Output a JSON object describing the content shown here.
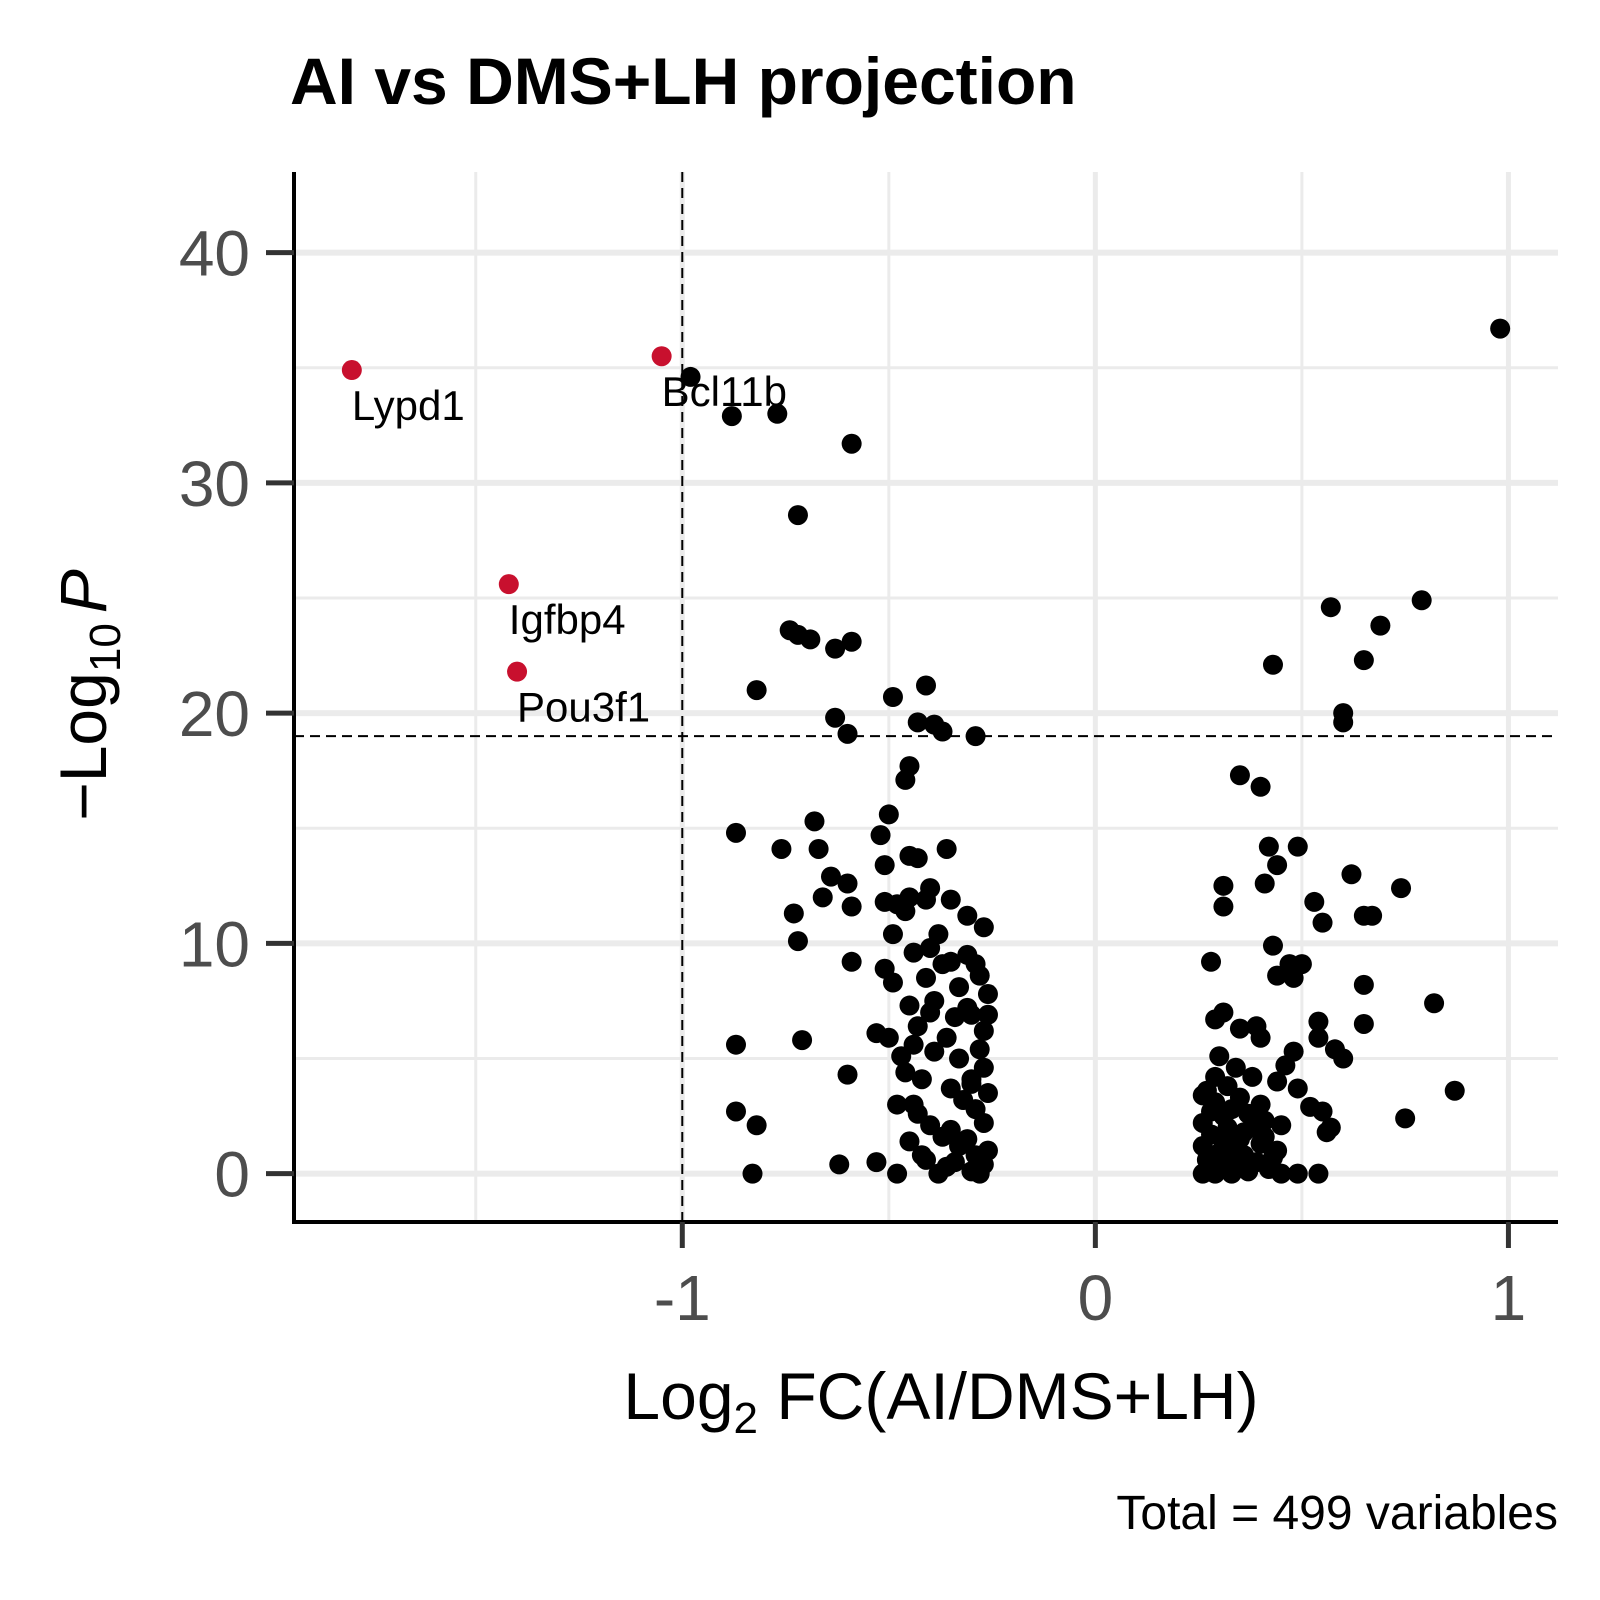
{
  "chart_data": {
    "type": "scatter",
    "title": "AI vs DMS+LH projection",
    "xlabel": {
      "prefix": "Log",
      "sub": "2",
      "rest": " FC(AI/DMS+LH)"
    },
    "ylabel": {
      "minus": "−",
      "prefix": "Log",
      "sub": "10",
      "italic": "P"
    },
    "caption": "Total = 499 variables",
    "xlim": [
      -1.94,
      1.12
    ],
    "ylim": [
      -2.1,
      43.5
    ],
    "x_ticks": [
      {
        "value": -1,
        "label": "-1"
      },
      {
        "value": 0,
        "label": "0"
      },
      {
        "value": 1,
        "label": "1"
      }
    ],
    "y_ticks": [
      {
        "value": 0,
        "label": "0"
      },
      {
        "value": 10,
        "label": "10"
      },
      {
        "value": 20,
        "label": "20"
      },
      {
        "value": 30,
        "label": "30"
      },
      {
        "value": 40,
        "label": "40"
      }
    ],
    "x_minor_grid": [
      -1.5,
      -0.5,
      0.5
    ],
    "y_minor_grid": [
      5,
      15,
      25,
      35
    ],
    "grid": true,
    "thresholds": {
      "x": -1.0,
      "y": 19.0
    },
    "colors": {
      "highlight": "#c8102e",
      "point": "#000000",
      "grid": "#ebebeb"
    },
    "labeled_points": [
      {
        "x": -1.8,
        "y": 34.9,
        "label": "Lypd1"
      },
      {
        "x": -1.05,
        "y": 35.5,
        "label": "Bcl11b"
      },
      {
        "x": -1.42,
        "y": 25.6,
        "label": "Igfbp4"
      },
      {
        "x": -1.4,
        "y": 21.8,
        "label": "Pou3f1"
      }
    ],
    "points": [
      [
        0.98,
        36.7
      ],
      [
        -0.98,
        34.6
      ],
      [
        -0.88,
        32.9
      ],
      [
        -0.77,
        33.0
      ],
      [
        -0.59,
        31.7
      ],
      [
        -0.72,
        28.6
      ],
      [
        -0.74,
        23.6
      ],
      [
        -0.72,
        23.4
      ],
      [
        -0.69,
        23.2
      ],
      [
        -0.59,
        23.1
      ],
      [
        -0.63,
        22.8
      ],
      [
        -0.82,
        21.0
      ],
      [
        -0.41,
        21.2
      ],
      [
        -0.49,
        20.7
      ],
      [
        -0.63,
        19.8
      ],
      [
        -0.43,
        19.6
      ],
      [
        -0.39,
        19.5
      ],
      [
        -0.37,
        19.2
      ],
      [
        -0.29,
        19.0
      ],
      [
        -0.6,
        19.1
      ],
      [
        -0.45,
        17.7
      ],
      [
        -0.46,
        17.1
      ],
      [
        -0.5,
        15.6
      ],
      [
        -0.68,
        15.3
      ],
      [
        -0.87,
        14.8
      ],
      [
        -0.52,
        14.7
      ],
      [
        -0.76,
        14.1
      ],
      [
        -0.67,
        14.1
      ],
      [
        -0.45,
        13.8
      ],
      [
        -0.43,
        13.7
      ],
      [
        -0.36,
        14.1
      ],
      [
        -0.51,
        13.4
      ],
      [
        -0.64,
        12.9
      ],
      [
        -0.6,
        12.6
      ],
      [
        -0.4,
        12.4
      ],
      [
        -0.66,
        12.0
      ],
      [
        -0.45,
        12.0
      ],
      [
        -0.41,
        11.9
      ],
      [
        -0.51,
        11.8
      ],
      [
        -0.35,
        11.9
      ],
      [
        -0.59,
        11.6
      ],
      [
        -0.48,
        11.7
      ],
      [
        -0.46,
        11.4
      ],
      [
        -0.31,
        11.2
      ],
      [
        -0.27,
        10.7
      ],
      [
        -0.73,
        11.3
      ],
      [
        -0.72,
        10.1
      ],
      [
        -0.49,
        10.4
      ],
      [
        -0.38,
        10.4
      ],
      [
        -0.4,
        9.8
      ],
      [
        -0.31,
        9.5
      ],
      [
        -0.44,
        9.6
      ],
      [
        -0.35,
        9.2
      ],
      [
        -0.29,
        9.1
      ],
      [
        -0.59,
        9.2
      ],
      [
        -0.51,
        8.9
      ],
      [
        -0.28,
        8.6
      ],
      [
        -0.26,
        7.8
      ],
      [
        -0.49,
        8.3
      ],
      [
        -0.45,
        7.3
      ],
      [
        -0.4,
        7.0
      ],
      [
        -0.34,
        6.8
      ],
      [
        -0.3,
        6.9
      ],
      [
        -0.26,
        6.9
      ],
      [
        -0.53,
        6.1
      ],
      [
        -0.5,
        5.9
      ],
      [
        -0.44,
        5.6
      ],
      [
        -0.39,
        5.3
      ],
      [
        -0.33,
        5.0
      ],
      [
        -0.28,
        5.4
      ],
      [
        -0.27,
        4.6
      ],
      [
        -0.46,
        4.4
      ],
      [
        -0.42,
        4.1
      ],
      [
        -0.35,
        3.7
      ],
      [
        -0.32,
        3.2
      ],
      [
        -0.29,
        2.8
      ],
      [
        -0.27,
        2.2
      ],
      [
        -0.48,
        3.0
      ],
      [
        -0.43,
        2.6
      ],
      [
        -0.4,
        2.1
      ],
      [
        -0.37,
        1.6
      ],
      [
        -0.33,
        1.2
      ],
      [
        -0.29,
        0.8
      ],
      [
        -0.27,
        0.4
      ],
      [
        -0.45,
        1.4
      ],
      [
        -0.41,
        0.6
      ],
      [
        -0.36,
        0.3
      ],
      [
        -0.3,
        0.1
      ],
      [
        -0.87,
        5.6
      ],
      [
        -0.71,
        5.8
      ],
      [
        -0.6,
        4.3
      ],
      [
        -0.87,
        2.7
      ],
      [
        -0.82,
        2.1
      ],
      [
        -0.83,
        0.0
      ],
      [
        -0.62,
        0.4
      ],
      [
        -0.53,
        0.5
      ],
      [
        -0.48,
        0.0
      ],
      [
        -0.42,
        0.8
      ],
      [
        -0.38,
        0.0
      ],
      [
        -0.34,
        0.5
      ],
      [
        -0.31,
        1.5
      ],
      [
        -0.28,
        0.0
      ],
      [
        -0.26,
        3.5
      ],
      [
        -0.3,
        4.1
      ],
      [
        -0.36,
        5.9
      ],
      [
        -0.39,
        7.5
      ],
      [
        -0.33,
        8.1
      ],
      [
        -0.43,
        6.4
      ],
      [
        -0.47,
        5.1
      ],
      [
        -0.27,
        6.2
      ],
      [
        -0.31,
        7.2
      ],
      [
        -0.37,
        9.1
      ],
      [
        -0.41,
        8.5
      ],
      [
        -0.3,
        3.9
      ],
      [
        -0.44,
        3.0
      ],
      [
        -0.35,
        1.9
      ],
      [
        -0.26,
        1.0
      ],
      [
        0.57,
        24.6
      ],
      [
        0.79,
        24.9
      ],
      [
        0.69,
        23.8
      ],
      [
        0.43,
        22.1
      ],
      [
        0.65,
        22.3
      ],
      [
        0.6,
        20.0
      ],
      [
        0.6,
        19.6
      ],
      [
        0.35,
        17.3
      ],
      [
        0.4,
        16.8
      ],
      [
        0.42,
        14.2
      ],
      [
        0.49,
        14.2
      ],
      [
        0.44,
        13.4
      ],
      [
        0.31,
        12.5
      ],
      [
        0.41,
        12.6
      ],
      [
        0.62,
        13.0
      ],
      [
        0.74,
        12.4
      ],
      [
        0.53,
        11.8
      ],
      [
        0.31,
        11.6
      ],
      [
        0.55,
        10.9
      ],
      [
        0.65,
        11.2
      ],
      [
        0.67,
        11.2
      ],
      [
        0.43,
        9.9
      ],
      [
        0.47,
        9.1
      ],
      [
        0.44,
        8.6
      ],
      [
        0.48,
        8.5
      ],
      [
        0.5,
        9.1
      ],
      [
        0.28,
        9.2
      ],
      [
        0.65,
        8.2
      ],
      [
        0.82,
        7.4
      ],
      [
        0.31,
        7.0
      ],
      [
        0.29,
        6.7
      ],
      [
        0.35,
        6.3
      ],
      [
        0.39,
        6.4
      ],
      [
        0.4,
        5.9
      ],
      [
        0.54,
        6.6
      ],
      [
        0.65,
        6.5
      ],
      [
        0.54,
        5.9
      ],
      [
        0.58,
        5.4
      ],
      [
        0.6,
        5.0
      ],
      [
        0.48,
        5.3
      ],
      [
        0.46,
        4.7
      ],
      [
        0.3,
        5.1
      ],
      [
        0.34,
        4.6
      ],
      [
        0.38,
        4.2
      ],
      [
        0.44,
        4.0
      ],
      [
        0.49,
        3.7
      ],
      [
        0.26,
        3.4
      ],
      [
        0.29,
        3.1
      ],
      [
        0.33,
        2.8
      ],
      [
        0.37,
        2.6
      ],
      [
        0.41,
        2.3
      ],
      [
        0.45,
        2.1
      ],
      [
        0.52,
        2.9
      ],
      [
        0.55,
        2.7
      ],
      [
        0.57,
        2.0
      ],
      [
        0.75,
        2.4
      ],
      [
        0.87,
        3.6
      ],
      [
        0.56,
        1.8
      ],
      [
        0.26,
        2.2
      ],
      [
        0.28,
        1.7
      ],
      [
        0.31,
        1.4
      ],
      [
        0.34,
        1.1
      ],
      [
        0.36,
        0.8
      ],
      [
        0.39,
        0.5
      ],
      [
        0.42,
        0.2
      ],
      [
        0.45,
        0.0
      ],
      [
        0.27,
        0.6
      ],
      [
        0.3,
        0.3
      ],
      [
        0.33,
        0.0
      ],
      [
        0.36,
        1.8
      ],
      [
        0.4,
        1.3
      ],
      [
        0.43,
        0.7
      ],
      [
        0.54,
        0.0
      ],
      [
        0.49,
        0.0
      ],
      [
        0.26,
        0.0
      ],
      [
        0.29,
        4.2
      ],
      [
        0.32,
        3.8
      ],
      [
        0.35,
        3.3
      ],
      [
        0.28,
        2.7
      ],
      [
        0.31,
        2.5
      ],
      [
        0.38,
        2.0
      ],
      [
        0.41,
        1.6
      ],
      [
        0.26,
        1.2
      ],
      [
        0.3,
        0.9
      ],
      [
        0.33,
        0.4
      ],
      [
        0.37,
        0.1
      ],
      [
        0.4,
        3.0
      ],
      [
        0.44,
        1.0
      ],
      [
        0.27,
        3.6
      ],
      [
        0.35,
        1.5
      ],
      [
        0.29,
        0.0
      ],
      [
        0.32,
        2.0
      ]
    ]
  }
}
